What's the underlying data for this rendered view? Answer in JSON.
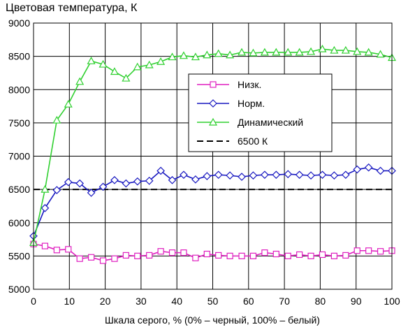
{
  "chart_data": {
    "type": "line",
    "title": "Цветовая температура, К",
    "xlabel": "Шкала серого, % (0% – черный, 100% – белый)",
    "ylabel": "",
    "xlim": [
      0,
      100
    ],
    "ylim": [
      5000,
      9000
    ],
    "xticks": [
      0,
      10,
      20,
      30,
      40,
      50,
      60,
      70,
      80,
      90,
      100
    ],
    "yticks": [
      5000,
      5500,
      6000,
      6500,
      7000,
      7500,
      8000,
      8500,
      9000
    ],
    "grid": true,
    "legend_position": "center-right",
    "x": [
      0,
      3.2,
      6.5,
      9.7,
      12.9,
      16.1,
      19.4,
      22.6,
      25.8,
      29,
      32.3,
      35.5,
      38.7,
      41.9,
      45.2,
      48.4,
      51.6,
      54.8,
      58.1,
      61.3,
      64.5,
      67.7,
      71,
      74.2,
      77.4,
      80.6,
      83.9,
      87.1,
      90.3,
      93.5,
      96.8,
      100
    ],
    "series": [
      {
        "name": "Низк.",
        "color": "#e020c0",
        "marker": "square",
        "values": [
          5680,
          5650,
          5590,
          5600,
          5460,
          5480,
          5430,
          5460,
          5510,
          5500,
          5510,
          5570,
          5550,
          5550,
          5470,
          5530,
          5510,
          5500,
          5500,
          5500,
          5550,
          5530,
          5500,
          5520,
          5500,
          5520,
          5500,
          5510,
          5580,
          5580,
          5570,
          5580
        ]
      },
      {
        "name": "Норм.",
        "color": "#1818c0",
        "marker": "diamond",
        "values": [
          5800,
          6220,
          6490,
          6610,
          6590,
          6450,
          6540,
          6640,
          6590,
          6620,
          6630,
          6780,
          6640,
          6720,
          6650,
          6700,
          6720,
          6710,
          6690,
          6710,
          6720,
          6720,
          6730,
          6720,
          6710,
          6720,
          6710,
          6720,
          6800,
          6830,
          6780,
          6780
        ]
      },
      {
        "name": "Динамический",
        "color": "#30d030",
        "marker": "triangle",
        "values": [
          5700,
          6500,
          7540,
          7780,
          8120,
          8430,
          8380,
          8270,
          8170,
          8340,
          8370,
          8420,
          8490,
          8510,
          8490,
          8520,
          8540,
          8520,
          8560,
          8550,
          8560,
          8560,
          8560,
          8560,
          8570,
          8610,
          8590,
          8590,
          8570,
          8560,
          8530,
          8480
        ]
      },
      {
        "name": "6500 К",
        "color": "#000000",
        "marker": "none",
        "dashed": true,
        "values": [
          6500,
          6500,
          6500,
          6500,
          6500,
          6500,
          6500,
          6500,
          6500,
          6500,
          6500,
          6500,
          6500,
          6500,
          6500,
          6500,
          6500,
          6500,
          6500,
          6500,
          6500,
          6500,
          6500,
          6500,
          6500,
          6500,
          6500,
          6500,
          6500,
          6500,
          6500,
          6500
        ]
      }
    ]
  }
}
